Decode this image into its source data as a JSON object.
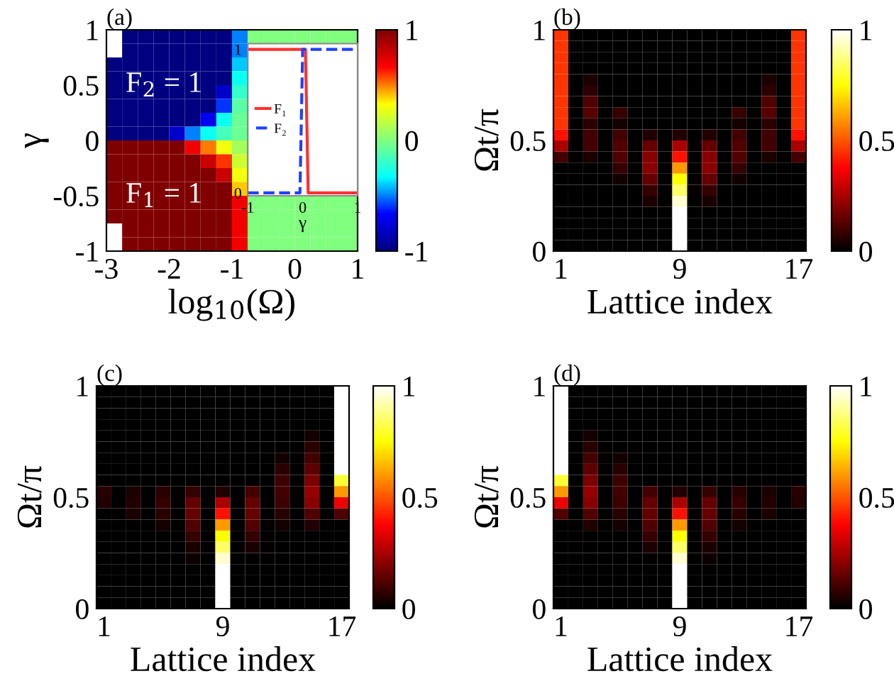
{
  "chart_data": [
    {
      "type": "heatmap",
      "title": "(a)",
      "xlabel": "log$_{10}$(Ω)",
      "ylabel": "γ",
      "xlim": [
        -3,
        1
      ],
      "ylim": [
        -1,
        1
      ],
      "xticks": [
        -3,
        -2,
        -1,
        0,
        1
      ],
      "yticks": [
        -1,
        {
          "value": -0.5,
          "label": "-0.5"
        },
        0,
        0.5,
        1
      ],
      "clim": [
        -1,
        1
      ],
      "cticks": [
        -1,
        0,
        1
      ],
      "colors": [
        "#000080",
        "#0000ff",
        "#00ffff",
        "#80ff80",
        "#ffff00",
        "#ff0000",
        "#800000"
      ],
      "annotations": [
        "F$_{2}$ = 1",
        "F$_{1}$ = 1"
      ],
      "cells": [
        [
          null,
          -1,
          -1,
          -1,
          -1,
          -1,
          -1,
          -1,
          -0.5,
          0,
          0,
          0,
          0,
          0,
          0,
          0
        ],
        [
          null,
          -1,
          -1,
          -1,
          -1,
          -1,
          -1,
          -1,
          -0.5,
          null,
          null,
          null,
          null,
          null,
          null,
          null
        ],
        [
          -1,
          -1,
          -1,
          -1,
          -1,
          -1,
          -1,
          -1,
          -0.4,
          null,
          null,
          null,
          null,
          null,
          null,
          null
        ],
        [
          -1,
          -1,
          -1,
          -1,
          -1,
          -1,
          -1,
          -1,
          -0.3,
          null,
          null,
          null,
          null,
          null,
          null,
          null
        ],
        [
          -1,
          -1,
          -1,
          -1,
          -1,
          -1,
          -1,
          -0.8,
          -0.2,
          null,
          null,
          null,
          null,
          null,
          null,
          null
        ],
        [
          -1,
          -1,
          -1,
          -1,
          -1,
          -1,
          -1,
          -0.6,
          -0.1,
          null,
          null,
          null,
          null,
          null,
          null,
          null
        ],
        [
          -1,
          -1,
          -1,
          -1,
          -1,
          -1,
          -0.7,
          -0.3,
          -0.05,
          null,
          null,
          null,
          null,
          null,
          null,
          null
        ],
        [
          -1,
          -1,
          -1,
          -1,
          -0.8,
          -0.5,
          -0.3,
          -0.15,
          -0.05,
          null,
          null,
          null,
          null,
          null,
          null,
          null
        ],
        [
          1,
          1,
          1,
          1,
          1,
          0.7,
          0.5,
          0.3,
          0.1,
          null,
          null,
          null,
          null,
          null,
          null,
          null
        ],
        [
          1,
          1,
          1,
          1,
          1,
          1,
          0.8,
          0.6,
          0.2,
          null,
          null,
          null,
          null,
          null,
          null,
          null
        ],
        [
          1,
          1,
          1,
          1,
          1,
          1,
          1,
          0.8,
          0.3,
          null,
          null,
          null,
          null,
          null,
          null,
          null
        ],
        [
          1,
          1,
          1,
          1,
          1,
          1,
          1,
          1,
          0.4,
          null,
          null,
          null,
          null,
          null,
          null,
          null
        ],
        [
          1,
          1,
          1,
          1,
          1,
          1,
          1,
          1,
          0.7,
          0,
          0,
          0,
          0,
          0,
          0,
          0
        ],
        [
          1,
          1,
          1,
          1,
          1,
          1,
          1,
          1,
          0.7,
          0,
          0,
          0,
          0,
          0,
          0,
          0
        ],
        [
          null,
          1,
          1,
          1,
          1,
          1,
          1,
          1,
          0.7,
          0,
          0,
          0,
          0,
          0,
          0,
          0
        ],
        [
          null,
          1,
          1,
          1,
          1,
          1,
          1,
          1,
          0.7,
          0,
          0,
          0,
          0,
          0,
          0,
          0
        ]
      ]
    },
    {
      "type": "line",
      "xlabel": "γ",
      "xlim": [
        -1,
        1
      ],
      "ylim": [
        -0.02,
        1.04
      ],
      "xticks": [
        -1,
        0,
        1
      ],
      "yticks": [
        0,
        1
      ],
      "legend": "left",
      "series": [
        {
          "name": "F₁",
          "color": "#ff3030",
          "line_style": "solid",
          "x": [
            -1,
            0.05,
            0.1,
            1
          ],
          "values": [
            1,
            1,
            0,
            0
          ]
        },
        {
          "name": "F₂",
          "color": "#2040ff",
          "line_style": "dashed",
          "x": [
            -1,
            -0.05,
            0,
            1
          ],
          "values": [
            0,
            0,
            1,
            1
          ]
        }
      ]
    },
    {
      "type": "heatmap",
      "title": "(b)",
      "xlabel": "Lattice index",
      "ylabel": "Ωt/π",
      "ylim": [
        0,
        1
      ],
      "yticks": [
        0,
        0.5,
        1
      ],
      "clim": [
        0,
        1
      ],
      "cticks": [
        0,
        0.5,
        1
      ],
      "categories": [
        "1",
        null,
        null,
        null,
        null,
        null,
        null,
        null,
        "9",
        null,
        null,
        null,
        null,
        null,
        null,
        null,
        "17"
      ],
      "colors": [
        "#000000",
        "#550000",
        "#aa0000",
        "#ff0000",
        "#ff5500",
        "#ffaa00",
        "#ffff00",
        "#ffff80",
        "#ffffff"
      ],
      "cells": [
        [
          0.45,
          0,
          0,
          0,
          0,
          0,
          0,
          0,
          0,
          0,
          0,
          0,
          0,
          0,
          0,
          0,
          0.45
        ],
        [
          0.45,
          0,
          0,
          0,
          0,
          0,
          0,
          0,
          0,
          0,
          0,
          0,
          0,
          0,
          0,
          0,
          0.45
        ],
        [
          0.45,
          0,
          0,
          0,
          0,
          0,
          0,
          0,
          0,
          0,
          0,
          0,
          0,
          0,
          0,
          0,
          0.45
        ],
        [
          0.45,
          0,
          0,
          0,
          0,
          0,
          0,
          0,
          0,
          0,
          0,
          0,
          0,
          0,
          0,
          0,
          0.45
        ],
        [
          0.45,
          0,
          0.04,
          0,
          0,
          0,
          0,
          0,
          0,
          0,
          0,
          0,
          0,
          0,
          0.04,
          0,
          0.45
        ],
        [
          0.45,
          0,
          0.07,
          0,
          0,
          0,
          0,
          0,
          0,
          0,
          0,
          0,
          0,
          0,
          0.07,
          0,
          0.45
        ],
        [
          0.45,
          0,
          0.12,
          0,
          0,
          0,
          0,
          0,
          0,
          0,
          0,
          0,
          0,
          0,
          0.12,
          0,
          0.45
        ],
        [
          0.45,
          0,
          0.13,
          0,
          0.08,
          0,
          0,
          0,
          0,
          0,
          0,
          0,
          0.08,
          0,
          0.13,
          0,
          0.45
        ],
        [
          0.45,
          0,
          0.07,
          0,
          0.03,
          0,
          0,
          0,
          0,
          0,
          0,
          0,
          0.03,
          0,
          0.07,
          0,
          0.45
        ],
        [
          0.4,
          0,
          0.1,
          0,
          0.1,
          0,
          0.05,
          0,
          0.05,
          0,
          0.05,
          0,
          0.1,
          0,
          0.1,
          0,
          0.4
        ],
        [
          0.25,
          0,
          0.1,
          0,
          0.12,
          0,
          0.15,
          0,
          0.25,
          0,
          0.15,
          0,
          0.12,
          0,
          0.1,
          0,
          0.25
        ],
        [
          0.1,
          0,
          0.04,
          0,
          0.12,
          0,
          0.2,
          0,
          0.4,
          0,
          0.2,
          0,
          0.12,
          0,
          0.04,
          0,
          0.1
        ],
        [
          0,
          0,
          0,
          0,
          0.08,
          0,
          0.2,
          0,
          0.6,
          0,
          0.2,
          0,
          0.08,
          0,
          0,
          0,
          0
        ],
        [
          0,
          0,
          0,
          0,
          0.03,
          0,
          0.15,
          0,
          0.75,
          0,
          0.15,
          0,
          0.03,
          0,
          0,
          0,
          0
        ],
        [
          0,
          0,
          0,
          0,
          0,
          0,
          0.08,
          0,
          0.85,
          0,
          0.08,
          0,
          0,
          0,
          0,
          0,
          0
        ],
        [
          0,
          0,
          0,
          0,
          0,
          0,
          0.04,
          0,
          0.95,
          0,
          0.04,
          0,
          0,
          0,
          0,
          0,
          0
        ],
        [
          0,
          0,
          0,
          0,
          0,
          0,
          0,
          0,
          1,
          0,
          0,
          0,
          0,
          0,
          0,
          0,
          0
        ],
        [
          0,
          0,
          0,
          0,
          0,
          0,
          0,
          0,
          1,
          0,
          0,
          0,
          0,
          0,
          0,
          0,
          0
        ],
        [
          0,
          0,
          0,
          0,
          0,
          0,
          0,
          0,
          1,
          0,
          0,
          0,
          0,
          0,
          0,
          0,
          0
        ],
        [
          0,
          0,
          0,
          0,
          0,
          0,
          0,
          0,
          1,
          0,
          0,
          0,
          0,
          0,
          0,
          0,
          0
        ]
      ]
    },
    {
      "type": "heatmap",
      "title": "(c)",
      "xlabel": "Lattice index",
      "ylabel": "Ωt/π",
      "ylim": [
        0,
        1
      ],
      "yticks": [
        0,
        0.5,
        1
      ],
      "clim": [
        0,
        1
      ],
      "cticks": [
        0,
        0.5,
        1
      ],
      "categories": [
        "1",
        null,
        null,
        null,
        null,
        null,
        null,
        null,
        "9",
        null,
        null,
        null,
        null,
        null,
        null,
        null,
        "17"
      ],
      "colors": [
        "#000000",
        "#550000",
        "#aa0000",
        "#ff0000",
        "#ff5500",
        "#ffaa00",
        "#ffff00",
        "#ffff80",
        "#ffffff"
      ],
      "cells": [
        [
          0,
          0,
          0,
          0,
          0,
          0,
          0,
          0,
          0,
          0,
          0,
          0,
          0,
          0,
          0,
          0,
          1
        ],
        [
          0,
          0,
          0,
          0,
          0,
          0,
          0,
          0,
          0,
          0,
          0,
          0,
          0,
          0,
          0,
          0,
          1
        ],
        [
          0,
          0,
          0,
          0,
          0,
          0,
          0,
          0,
          0,
          0,
          0,
          0,
          0,
          0,
          0,
          0,
          1
        ],
        [
          0,
          0,
          0,
          0,
          0,
          0,
          0,
          0,
          0,
          0,
          0,
          0,
          0,
          0,
          0,
          0,
          1
        ],
        [
          0,
          0,
          0,
          0,
          0,
          0,
          0,
          0,
          0,
          0,
          0,
          0,
          0,
          0,
          0.03,
          0,
          1
        ],
        [
          0,
          0,
          0,
          0,
          0,
          0,
          0,
          0,
          0,
          0,
          0,
          0,
          0,
          0,
          0.06,
          0,
          1
        ],
        [
          0,
          0,
          0,
          0,
          0,
          0,
          0,
          0,
          0,
          0,
          0,
          0,
          0.03,
          0,
          0.1,
          0,
          1
        ],
        [
          0,
          0,
          0,
          0,
          0,
          0,
          0,
          0,
          0,
          0,
          0,
          0,
          0.06,
          0,
          0.14,
          0,
          1
        ],
        [
          0,
          0,
          0,
          0,
          0,
          0,
          0,
          0,
          0,
          0,
          0,
          0,
          0.09,
          0,
          0.18,
          0,
          0.8
        ],
        [
          0.06,
          0,
          0.04,
          0,
          0.06,
          0,
          0.08,
          0,
          0.05,
          0,
          0.1,
          0,
          0.1,
          0,
          0.22,
          0,
          0.6
        ],
        [
          0.05,
          0,
          0.05,
          0,
          0.08,
          0,
          0.15,
          0,
          0.25,
          0,
          0.15,
          0,
          0.09,
          0,
          0.2,
          0,
          0.35
        ],
        [
          0,
          0,
          0.04,
          0,
          0.06,
          0,
          0.15,
          0,
          0.4,
          0,
          0.15,
          0,
          0.06,
          0,
          0.12,
          0,
          0.12
        ],
        [
          0,
          0,
          0,
          0,
          0.03,
          0,
          0.12,
          0,
          0.6,
          0,
          0.12,
          0,
          0.03,
          0,
          0.05,
          0,
          0
        ],
        [
          0,
          0,
          0,
          0,
          0,
          0,
          0.08,
          0,
          0.75,
          0,
          0.08,
          0,
          0,
          0,
          0,
          0,
          0
        ],
        [
          0,
          0,
          0,
          0,
          0,
          0,
          0.04,
          0,
          0.85,
          0,
          0.04,
          0,
          0,
          0,
          0,
          0,
          0
        ],
        [
          0,
          0,
          0,
          0,
          0,
          0,
          0.02,
          0,
          0.95,
          0,
          0,
          0,
          0,
          0,
          0,
          0,
          0
        ],
        [
          0,
          0,
          0,
          0,
          0,
          0,
          0,
          0,
          1,
          0,
          0,
          0,
          0,
          0,
          0,
          0,
          0
        ],
        [
          0,
          0,
          0,
          0,
          0,
          0,
          0,
          0,
          1,
          0,
          0,
          0,
          0,
          0,
          0,
          0,
          0
        ],
        [
          0,
          0,
          0,
          0,
          0,
          0,
          0,
          0,
          1,
          0,
          0,
          0,
          0,
          0,
          0,
          0,
          0
        ],
        [
          0,
          0,
          0,
          0,
          0,
          0,
          0,
          0,
          1,
          0,
          0,
          0,
          0,
          0,
          0,
          0,
          0
        ]
      ]
    },
    {
      "type": "heatmap",
      "title": "(d)",
      "xlabel": "Lattice index",
      "ylabel": "Ωt/π",
      "ylim": [
        0,
        1
      ],
      "yticks": [
        0,
        0.5,
        1
      ],
      "clim": [
        0,
        1
      ],
      "cticks": [
        0,
        0.5,
        1
      ],
      "categories": [
        "1",
        null,
        null,
        null,
        null,
        null,
        null,
        null,
        "9",
        null,
        null,
        null,
        null,
        null,
        null,
        null,
        "17"
      ],
      "colors": [
        "#000000",
        "#550000",
        "#aa0000",
        "#ff0000",
        "#ff5500",
        "#ffaa00",
        "#ffff00",
        "#ffff80",
        "#ffffff"
      ],
      "cells": [
        [
          1,
          0,
          0,
          0,
          0,
          0,
          0,
          0,
          0,
          0,
          0,
          0,
          0,
          0,
          0,
          0,
          0
        ],
        [
          1,
          0,
          0,
          0,
          0,
          0,
          0,
          0,
          0,
          0,
          0,
          0,
          0,
          0,
          0,
          0,
          0
        ],
        [
          1,
          0,
          0,
          0,
          0,
          0,
          0,
          0,
          0,
          0,
          0,
          0,
          0,
          0,
          0,
          0,
          0
        ],
        [
          1,
          0,
          0,
          0,
          0,
          0,
          0,
          0,
          0,
          0,
          0,
          0,
          0,
          0,
          0,
          0,
          0
        ],
        [
          1,
          0,
          0.03,
          0,
          0,
          0,
          0,
          0,
          0,
          0,
          0,
          0,
          0,
          0,
          0,
          0,
          0
        ],
        [
          1,
          0,
          0.06,
          0,
          0,
          0,
          0,
          0,
          0,
          0,
          0,
          0,
          0,
          0,
          0,
          0,
          0
        ],
        [
          1,
          0,
          0.1,
          0,
          0.03,
          0,
          0,
          0,
          0,
          0,
          0,
          0,
          0,
          0,
          0,
          0,
          0
        ],
        [
          1,
          0,
          0.14,
          0,
          0.06,
          0,
          0,
          0,
          0,
          0,
          0,
          0,
          0,
          0,
          0,
          0,
          0
        ],
        [
          0.8,
          0,
          0.18,
          0,
          0.09,
          0,
          0,
          0,
          0,
          0,
          0,
          0,
          0,
          0,
          0,
          0,
          0
        ],
        [
          0.6,
          0,
          0.22,
          0,
          0.1,
          0,
          0.1,
          0,
          0.05,
          0,
          0.08,
          0,
          0.06,
          0,
          0.04,
          0,
          0.06
        ],
        [
          0.35,
          0,
          0.2,
          0,
          0.09,
          0,
          0.15,
          0,
          0.25,
          0,
          0.15,
          0,
          0.08,
          0,
          0.05,
          0,
          0.05
        ],
        [
          0.12,
          0,
          0.12,
          0,
          0.06,
          0,
          0.15,
          0,
          0.4,
          0,
          0.15,
          0,
          0.06,
          0,
          0.04,
          0,
          0
        ],
        [
          0,
          0,
          0.05,
          0,
          0.03,
          0,
          0.12,
          0,
          0.6,
          0,
          0.12,
          0,
          0.03,
          0,
          0,
          0,
          0
        ],
        [
          0,
          0,
          0,
          0,
          0,
          0,
          0.08,
          0,
          0.75,
          0,
          0.08,
          0,
          0,
          0,
          0,
          0,
          0
        ],
        [
          0,
          0,
          0,
          0,
          0,
          0,
          0.04,
          0,
          0.85,
          0,
          0.04,
          0,
          0,
          0,
          0,
          0,
          0
        ],
        [
          0,
          0,
          0,
          0,
          0,
          0,
          0,
          0,
          0.95,
          0,
          0.02,
          0,
          0,
          0,
          0,
          0,
          0
        ],
        [
          0,
          0,
          0,
          0,
          0,
          0,
          0,
          0,
          1,
          0,
          0,
          0,
          0,
          0,
          0,
          0,
          0
        ],
        [
          0,
          0,
          0,
          0,
          0,
          0,
          0,
          0,
          1,
          0,
          0,
          0,
          0,
          0,
          0,
          0,
          0
        ],
        [
          0,
          0,
          0,
          0,
          0,
          0,
          0,
          0,
          1,
          0,
          0,
          0,
          0,
          0,
          0,
          0,
          0
        ],
        [
          0,
          0,
          0,
          0,
          0,
          0,
          0,
          0,
          1,
          0,
          0,
          0,
          0,
          0,
          0,
          0,
          0
        ]
      ]
    }
  ]
}
